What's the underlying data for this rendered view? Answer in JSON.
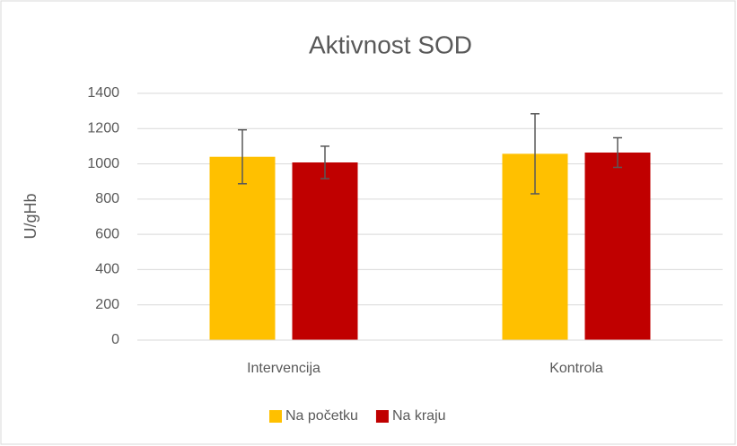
{
  "chart_data": {
    "type": "bar",
    "title": "Aktivnost SOD",
    "y_label": "U/gHb",
    "categories": [
      "Intervencija",
      "Kontrola"
    ],
    "series": [
      {
        "name": "Na početku",
        "color": "#ffc000",
        "values": [
          1040,
          1057
        ],
        "errors": [
          153,
          227
        ]
      },
      {
        "name": "Na kraju",
        "color": "#c00000",
        "values": [
          1008,
          1064
        ],
        "errors": [
          92,
          84
        ]
      }
    ],
    "ylim": [
      0,
      1400
    ],
    "yticks": [
      0,
      200,
      400,
      600,
      800,
      1000,
      1200,
      1400
    ],
    "grid": true,
    "legend": "bottom"
  }
}
